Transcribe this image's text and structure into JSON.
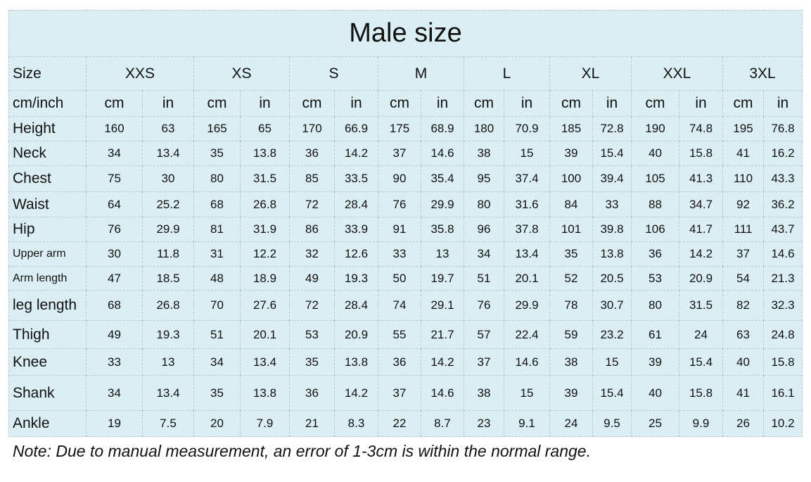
{
  "title": "Male size",
  "table": {
    "header": [
      "Size",
      "XXS",
      "XS",
      "S",
      "M",
      "L",
      "XL",
      "XXL",
      "3XL"
    ],
    "unit_row": [
      "cm/inch",
      "cm",
      "in",
      "cm",
      "in",
      "cm",
      "in",
      "cm",
      "in",
      "cm",
      "in",
      "cm",
      "in",
      "cm",
      "in",
      "cm",
      "in"
    ],
    "rows": [
      {
        "label": "Height",
        "values": [
          160,
          63,
          165,
          65,
          170,
          66.9,
          175,
          68.9,
          180,
          70.9,
          185,
          72.8,
          190,
          74.8,
          195,
          76.8
        ]
      },
      {
        "label": "Neck",
        "values": [
          34,
          13.4,
          35,
          13.8,
          36,
          14.2,
          37,
          14.6,
          38,
          15,
          39,
          15.4,
          40,
          15.8,
          41,
          16.2
        ]
      },
      {
        "label": "Chest",
        "values": [
          75,
          30,
          80,
          31.5,
          85,
          33.5,
          90,
          35.4,
          95,
          37.4,
          100,
          39.4,
          105,
          41.3,
          110,
          43.3
        ]
      },
      {
        "label": "Waist",
        "values": [
          64,
          25.2,
          68,
          26.8,
          72,
          28.4,
          76,
          29.9,
          80,
          31.6,
          84,
          33,
          88,
          34.7,
          92,
          36.2
        ]
      },
      {
        "label": "Hip",
        "values": [
          76,
          29.9,
          81,
          31.9,
          86,
          33.9,
          91,
          35.8,
          96,
          37.8,
          101,
          39.8,
          106,
          41.7,
          111,
          43.7
        ]
      },
      {
        "label": "Upper arm",
        "values": [
          30,
          11.8,
          31,
          12.2,
          32,
          12.6,
          33,
          13,
          34,
          13.4,
          35,
          13.8,
          36,
          14.2,
          37,
          14.6
        ]
      },
      {
        "label": "Arm length",
        "values": [
          47,
          18.5,
          48,
          18.9,
          49,
          19.3,
          50,
          19.7,
          51,
          20.1,
          52,
          20.5,
          53,
          20.9,
          54,
          21.3
        ]
      },
      {
        "label": "leg length",
        "values": [
          68,
          26.8,
          70,
          27.6,
          72,
          28.4,
          74,
          29.1,
          76,
          29.9,
          78,
          30.7,
          80,
          31.5,
          82,
          32.3
        ]
      },
      {
        "label": "Thigh",
        "values": [
          49,
          19.3,
          51,
          20.1,
          53,
          20.9,
          55,
          21.7,
          57,
          22.4,
          59,
          23.2,
          61,
          24,
          63,
          24.8
        ]
      },
      {
        "label": "Knee",
        "values": [
          33,
          13,
          34,
          13.4,
          35,
          13.8,
          36,
          14.2,
          37,
          14.6,
          38,
          15,
          39,
          15.4,
          40,
          15.8
        ]
      },
      {
        "label": "Shank",
        "values": [
          34,
          13.4,
          35,
          13.8,
          36,
          14.2,
          37,
          14.6,
          38,
          15,
          39,
          15.4,
          40,
          15.8,
          41,
          16.1
        ]
      },
      {
        "label": "Ankle",
        "values": [
          19,
          7.5,
          20,
          7.9,
          21,
          8.3,
          22,
          8.7,
          23,
          9.1,
          24,
          9.5,
          25,
          9.9,
          26,
          10.2
        ]
      }
    ]
  },
  "note": "Note: Due to manual measurement, an error of 1-3cm is within the normal range."
}
